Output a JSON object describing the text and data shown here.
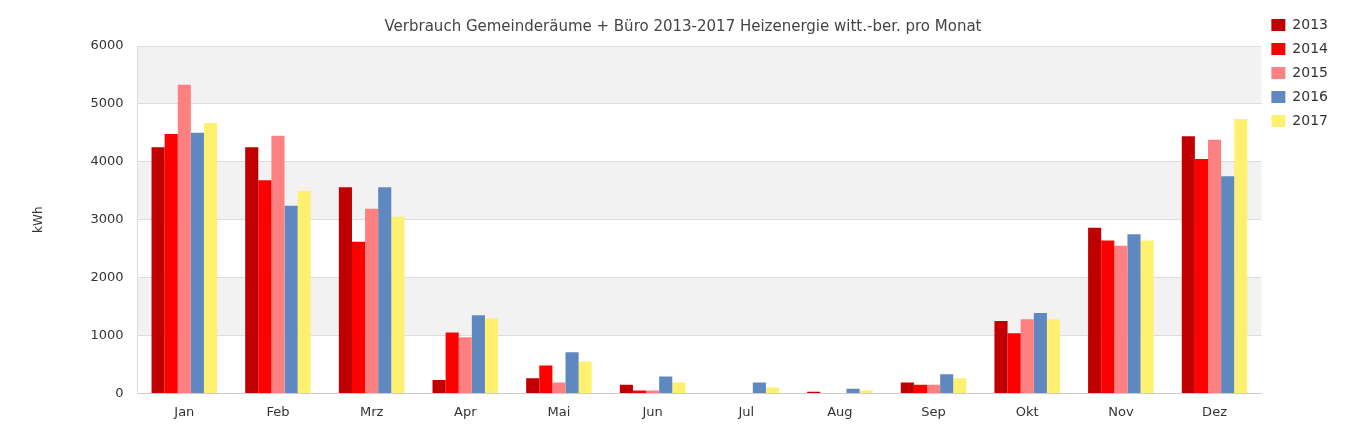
{
  "chart_data": {
    "type": "bar",
    "title": "Verbrauch Gemeinderäume + Büro 2013-2017 Heizenergie witt.-ber. pro Monat",
    "ylabel": "kWh",
    "categories": [
      "Jan",
      "Feb",
      "Mrz",
      "Apr",
      "Mai",
      "Jun",
      "Jul",
      "Aug",
      "Sep",
      "Okt",
      "Nov",
      "Dez"
    ],
    "series": [
      {
        "name": "2013",
        "color": "#c00000",
        "values": [
          4250,
          4250,
          3560,
          230,
          260,
          150,
          0,
          30,
          190,
          1250,
          2860,
          4440
        ]
      },
      {
        "name": "2014",
        "color": "#ff0000",
        "values": [
          4480,
          3680,
          2620,
          1050,
          480,
          50,
          0,
          0,
          150,
          1040,
          2640,
          4050
        ]
      },
      {
        "name": "2015",
        "color": "#ff8080",
        "values": [
          5330,
          4450,
          3190,
          970,
          190,
          50,
          0,
          0,
          150,
          1280,
          2550,
          4380
        ]
      },
      {
        "name": "2016",
        "color": "#6088c0",
        "values": [
          4500,
          3240,
          3560,
          1350,
          710,
          290,
          190,
          80,
          330,
          1390,
          2750,
          3750
        ]
      },
      {
        "name": "2017",
        "color": "#fff070",
        "values": [
          4670,
          3500,
          3050,
          1300,
          550,
          190,
          100,
          50,
          260,
          1280,
          2640,
          4740
        ]
      }
    ],
    "ylim": [
      0,
      6000
    ],
    "yticks": [
      0,
      1000,
      2000,
      3000,
      4000,
      5000,
      6000
    ],
    "grid": true,
    "legend": "top right"
  }
}
